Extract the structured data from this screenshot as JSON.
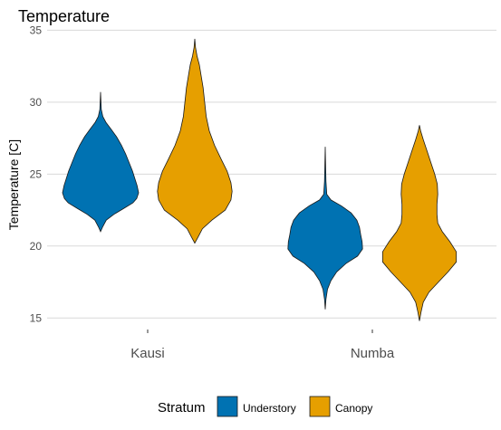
{
  "chart_data": {
    "type": "violin",
    "title": "Temperature",
    "xlabel": "",
    "ylabel": "Temperature [C]",
    "ylim": [
      14.2,
      35.4
    ],
    "yticks": [
      15,
      20,
      25,
      30,
      35
    ],
    "categories": [
      "Kausi",
      "Numba"
    ],
    "legend_title": "Stratum",
    "legend_position": "bottom",
    "grid": "horizontal major",
    "series": [
      {
        "name": "Understory",
        "color": "#0072B2",
        "violins": [
          {
            "category": "Kausi",
            "min": 21.0,
            "max": 30.7,
            "profile": [
              [
                21.0,
                0.0
              ],
              [
                21.3,
                0.05
              ],
              [
                21.8,
                0.15
              ],
              [
                22.2,
                0.35
              ],
              [
                22.6,
                0.6
              ],
              [
                23.0,
                0.85
              ],
              [
                23.3,
                0.95
              ],
              [
                23.7,
                1.0
              ],
              [
                24.2,
                0.96
              ],
              [
                24.7,
                0.9
              ],
              [
                25.2,
                0.84
              ],
              [
                25.8,
                0.75
              ],
              [
                26.4,
                0.66
              ],
              [
                27.0,
                0.55
              ],
              [
                27.6,
                0.42
              ],
              [
                28.1,
                0.28
              ],
              [
                28.6,
                0.14
              ],
              [
                29.0,
                0.06
              ],
              [
                29.5,
                0.02
              ],
              [
                30.7,
                0.0
              ]
            ]
          },
          {
            "category": "Numba",
            "min": 15.6,
            "max": 26.9,
            "profile": [
              [
                15.6,
                0.0
              ],
              [
                16.3,
                0.02
              ],
              [
                17.0,
                0.06
              ],
              [
                17.6,
                0.15
              ],
              [
                18.2,
                0.3
              ],
              [
                18.8,
                0.55
              ],
              [
                19.3,
                0.85
              ],
              [
                19.8,
                0.98
              ],
              [
                20.3,
                0.97
              ],
              [
                20.8,
                0.93
              ],
              [
                21.3,
                0.9
              ],
              [
                21.8,
                0.83
              ],
              [
                22.3,
                0.68
              ],
              [
                22.8,
                0.42
              ],
              [
                23.2,
                0.15
              ],
              [
                23.6,
                0.04
              ],
              [
                24.5,
                0.02
              ],
              [
                26.9,
                0.0
              ]
            ]
          }
        ]
      },
      {
        "name": "Canopy",
        "color": "#E69F00",
        "violins": [
          {
            "category": "Kausi",
            "min": 20.2,
            "max": 34.4,
            "profile": [
              [
                20.2,
                0.0
              ],
              [
                20.6,
                0.08
              ],
              [
                21.2,
                0.2
              ],
              [
                21.8,
                0.45
              ],
              [
                22.5,
                0.8
              ],
              [
                23.2,
                0.95
              ],
              [
                23.8,
                0.98
              ],
              [
                24.4,
                0.95
              ],
              [
                25.2,
                0.85
              ],
              [
                26.0,
                0.7
              ],
              [
                27.0,
                0.52
              ],
              [
                28.0,
                0.38
              ],
              [
                29.0,
                0.3
              ],
              [
                30.0,
                0.26
              ],
              [
                31.0,
                0.22
              ],
              [
                31.8,
                0.17
              ],
              [
                32.6,
                0.12
              ],
              [
                33.2,
                0.06
              ],
              [
                33.8,
                0.02
              ],
              [
                34.4,
                0.0
              ]
            ]
          },
          {
            "category": "Numba",
            "min": 14.8,
            "max": 28.4,
            "profile": [
              [
                14.8,
                0.0
              ],
              [
                15.4,
                0.04
              ],
              [
                16.1,
                0.1
              ],
              [
                16.8,
                0.25
              ],
              [
                17.5,
                0.5
              ],
              [
                18.2,
                0.75
              ],
              [
                18.9,
                0.97
              ],
              [
                19.6,
                0.97
              ],
              [
                20.3,
                0.8
              ],
              [
                21.0,
                0.6
              ],
              [
                21.6,
                0.48
              ],
              [
                22.2,
                0.46
              ],
              [
                22.9,
                0.46
              ],
              [
                23.6,
                0.48
              ],
              [
                24.3,
                0.47
              ],
              [
                25.0,
                0.4
              ],
              [
                25.8,
                0.3
              ],
              [
                26.6,
                0.2
              ],
              [
                27.4,
                0.1
              ],
              [
                28.0,
                0.03
              ],
              [
                28.4,
                0.0
              ]
            ]
          }
        ]
      }
    ]
  }
}
